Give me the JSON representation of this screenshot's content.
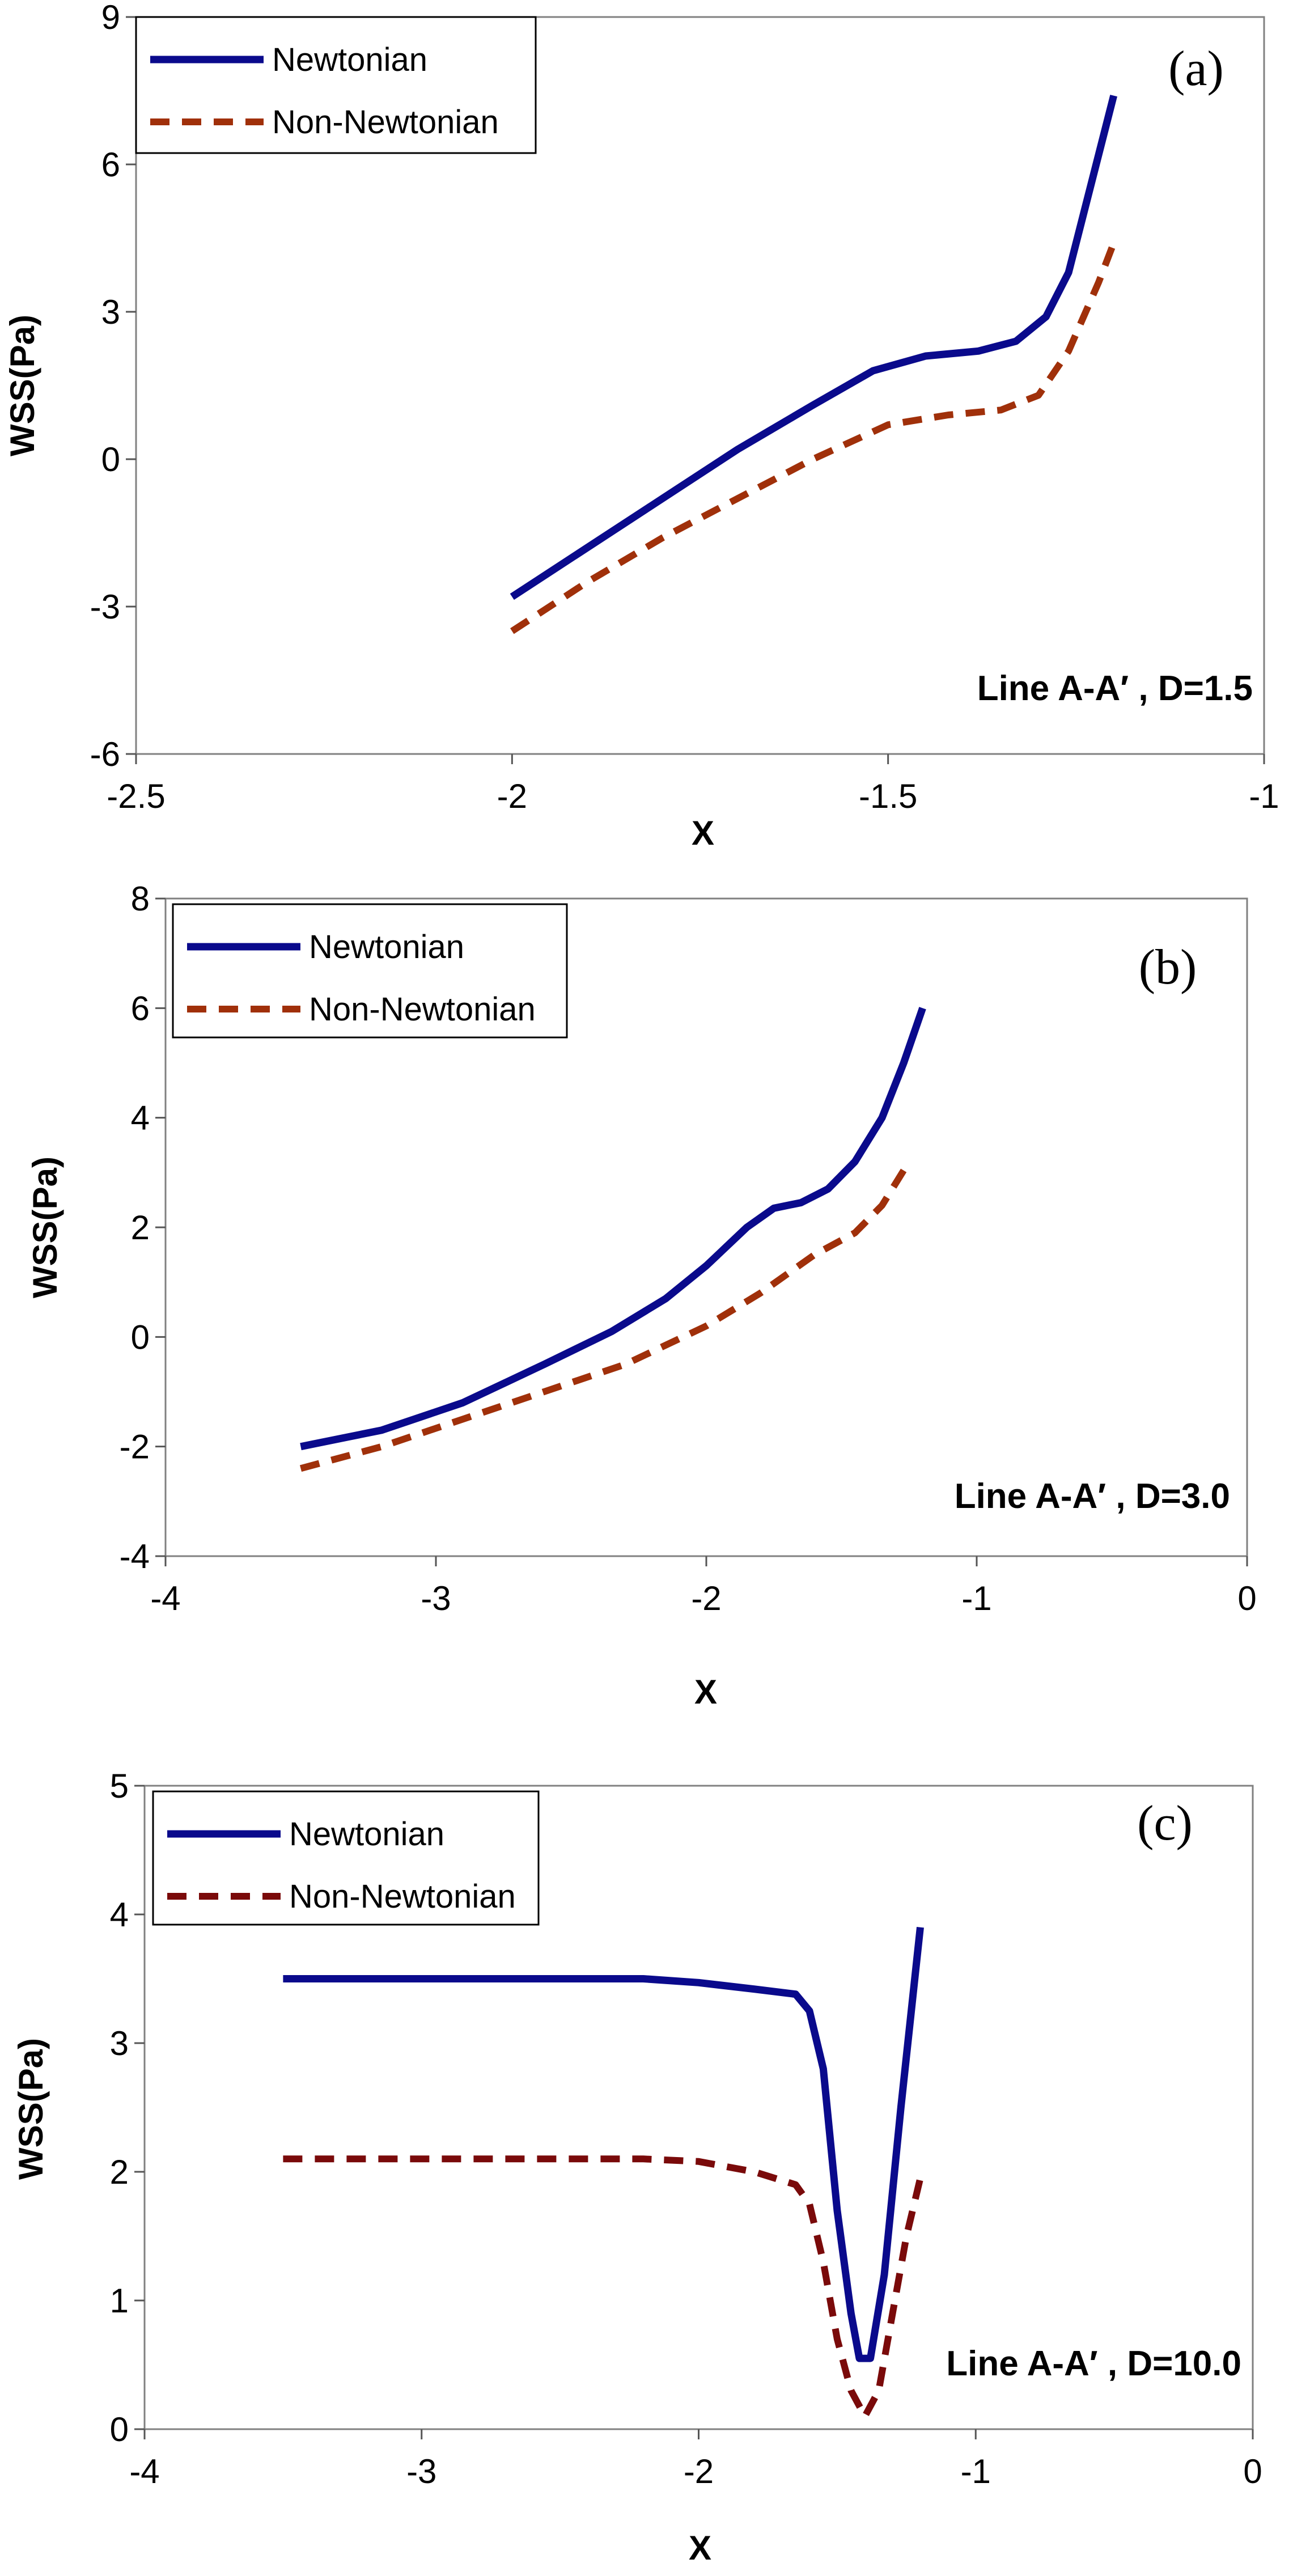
{
  "chart_data": [
    {
      "type": "line",
      "panel_label": "(a)",
      "annotation": "Line A-A′ , D=1.5",
      "xlabel": "X",
      "ylabel": "WSS(Pa)",
      "xlim": [
        -2.5,
        -1
      ],
      "ylim": [
        -6,
        9
      ],
      "xticks": [
        -2.5,
        -2,
        -1.5,
        -1
      ],
      "yticks": [
        -6,
        -3,
        0,
        3,
        6,
        9
      ],
      "legend_position": "top-left",
      "series": [
        {
          "name": "Newtonian",
          "style": "solid",
          "color": "#0a0a8c",
          "points": [
            [
              -2.0,
              -2.8
            ],
            [
              -1.9,
              -1.8
            ],
            [
              -1.8,
              -0.8
            ],
            [
              -1.7,
              0.2
            ],
            [
              -1.6,
              1.1
            ],
            [
              -1.52,
              1.8
            ],
            [
              -1.45,
              2.1
            ],
            [
              -1.38,
              2.2
            ],
            [
              -1.33,
              2.4
            ],
            [
              -1.29,
              2.9
            ],
            [
              -1.26,
              3.8
            ],
            [
              -1.23,
              5.6
            ],
            [
              -1.2,
              7.4
            ]
          ]
        },
        {
          "name": "Non-Newtonian",
          "style": "dashed",
          "color": "#a0300a",
          "points": [
            [
              -2.0,
              -3.5
            ],
            [
              -1.9,
              -2.5
            ],
            [
              -1.8,
              -1.6
            ],
            [
              -1.7,
              -0.8
            ],
            [
              -1.6,
              0.0
            ],
            [
              -1.5,
              0.7
            ],
            [
              -1.42,
              0.9
            ],
            [
              -1.35,
              1.0
            ],
            [
              -1.3,
              1.3
            ],
            [
              -1.26,
              2.2
            ],
            [
              -1.22,
              3.6
            ],
            [
              -1.2,
              4.4
            ]
          ]
        }
      ]
    },
    {
      "type": "line",
      "panel_label": "(b)",
      "annotation": "Line A-A′ , D=3.0",
      "xlabel": "X",
      "ylabel": "WSS(Pa)",
      "xlim": [
        -4,
        0
      ],
      "ylim": [
        -4,
        8
      ],
      "xticks": [
        -4,
        -3,
        -2,
        -1,
        0
      ],
      "yticks": [
        -4,
        -2,
        0,
        2,
        4,
        6,
        8
      ],
      "legend_position": "top-left",
      "series": [
        {
          "name": "Newtonian",
          "style": "solid",
          "color": "#0a0a8c",
          "points": [
            [
              -3.5,
              -2.0
            ],
            [
              -3.2,
              -1.7
            ],
            [
              -2.9,
              -1.2
            ],
            [
              -2.6,
              -0.5
            ],
            [
              -2.35,
              0.1
            ],
            [
              -2.15,
              0.7
            ],
            [
              -2.0,
              1.3
            ],
            [
              -1.85,
              2.0
            ],
            [
              -1.75,
              2.35
            ],
            [
              -1.65,
              2.45
            ],
            [
              -1.55,
              2.7
            ],
            [
              -1.45,
              3.2
            ],
            [
              -1.35,
              4.0
            ],
            [
              -1.27,
              5.0
            ],
            [
              -1.2,
              6.0
            ]
          ]
        },
        {
          "name": "Non-Newtonian",
          "style": "dashed",
          "color": "#a0300a",
          "points": [
            [
              -3.5,
              -2.4
            ],
            [
              -3.2,
              -2.0
            ],
            [
              -2.9,
              -1.5
            ],
            [
              -2.6,
              -1.0
            ],
            [
              -2.3,
              -0.5
            ],
            [
              -2.0,
              0.2
            ],
            [
              -1.8,
              0.8
            ],
            [
              -1.6,
              1.5
            ],
            [
              -1.45,
              1.9
            ],
            [
              -1.35,
              2.4
            ],
            [
              -1.25,
              3.2
            ]
          ]
        }
      ]
    },
    {
      "type": "line",
      "panel_label": "(c)",
      "annotation": "Line A-A′ , D=10.0",
      "xlabel": "X",
      "ylabel": "WSS(Pa)",
      "xlim": [
        -4,
        0
      ],
      "ylim": [
        0,
        5
      ],
      "xticks": [
        -4,
        -3,
        -2,
        -1,
        0
      ],
      "yticks": [
        0,
        1,
        2,
        3,
        4,
        5
      ],
      "legend_position": "top-left",
      "series": [
        {
          "name": "Newtonian",
          "style": "solid",
          "color": "#0a0a8c",
          "points": [
            [
              -3.5,
              3.5
            ],
            [
              -2.2,
              3.5
            ],
            [
              -2.0,
              3.47
            ],
            [
              -1.8,
              3.42
            ],
            [
              -1.65,
              3.38
            ],
            [
              -1.6,
              3.25
            ],
            [
              -1.55,
              2.8
            ],
            [
              -1.5,
              1.7
            ],
            [
              -1.45,
              0.9
            ],
            [
              -1.42,
              0.55
            ],
            [
              -1.38,
              0.55
            ],
            [
              -1.33,
              1.2
            ],
            [
              -1.27,
              2.5
            ],
            [
              -1.2,
              3.9
            ]
          ]
        },
        {
          "name": "Non-Newtonian",
          "style": "dashed",
          "color": "#7a0a0a",
          "points": [
            [
              -3.5,
              2.1
            ],
            [
              -2.2,
              2.1
            ],
            [
              -2.0,
              2.08
            ],
            [
              -1.8,
              2.0
            ],
            [
              -1.65,
              1.9
            ],
            [
              -1.6,
              1.75
            ],
            [
              -1.55,
              1.3
            ],
            [
              -1.5,
              0.7
            ],
            [
              -1.45,
              0.3
            ],
            [
              -1.4,
              0.1
            ],
            [
              -1.35,
              0.3
            ],
            [
              -1.3,
              0.9
            ],
            [
              -1.25,
              1.5
            ],
            [
              -1.2,
              1.95
            ]
          ]
        }
      ]
    }
  ]
}
